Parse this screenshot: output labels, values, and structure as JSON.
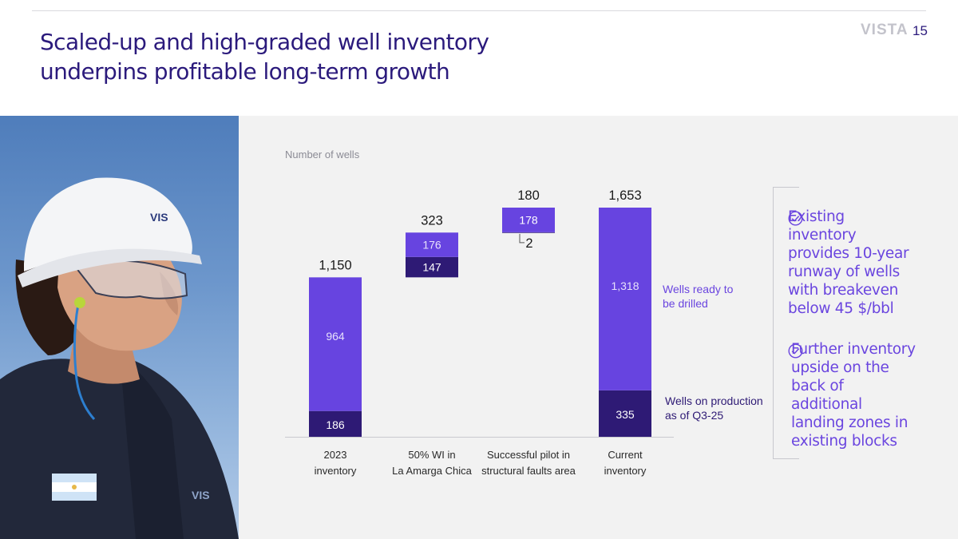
{
  "header": {
    "title_line1": "Scaled-up and high-graded well inventory",
    "title_line2": "underpins profitable long-term growth",
    "brand": "VISTA",
    "page_number": "15"
  },
  "photo": {
    "description_icon": "worker-photo",
    "helmet_label": "VIS",
    "shirt_label": "VIS"
  },
  "chart_data": {
    "type": "bar",
    "subtype": "waterfall",
    "ylabel": "Number of wells",
    "categories": [
      [
        "2023",
        "inventory"
      ],
      [
        "50% WI in",
        "La Amarga Chica"
      ],
      [
        "Successful pilot in",
        "structural faults area"
      ],
      [
        "Current",
        "inventory"
      ]
    ],
    "totals": [
      1150,
      323,
      180,
      1653
    ],
    "total_labels": [
      "1,150",
      "323",
      "180",
      "1,653"
    ],
    "series": [
      {
        "name": "Wells on production as of Q3-25",
        "color": "#2e1a75",
        "values": [
          186,
          147,
          2,
          335
        ],
        "labels": [
          "186",
          "147",
          "2",
          "335"
        ]
      },
      {
        "name": "Wells ready to be drilled",
        "color": "#6744e0",
        "values": [
          964,
          176,
          178,
          1318
        ],
        "labels": [
          "964",
          "176",
          "178",
          "1,318"
        ]
      }
    ],
    "annotations": [
      [
        "Wells ready to",
        "be drilled"
      ],
      [
        "Wells on production",
        "as of Q3-25"
      ]
    ],
    "ylim": [
      0,
      1653
    ],
    "grid": false,
    "legend": "none"
  },
  "bullets": [
    {
      "icon": "check-circle-icon",
      "text": "Existing inventory provides 10-year runway of wells with breakeven below 45 $/bbl"
    },
    {
      "icon": "check-circle-icon",
      "text": "Further inventory upside on the back of additional landing zones in existing blocks"
    }
  ],
  "colors": {
    "title": "#2b1a7c",
    "dark_bar": "#2e1a75",
    "light_bar": "#6744e0",
    "panel_bg": "#f2f2f2"
  }
}
